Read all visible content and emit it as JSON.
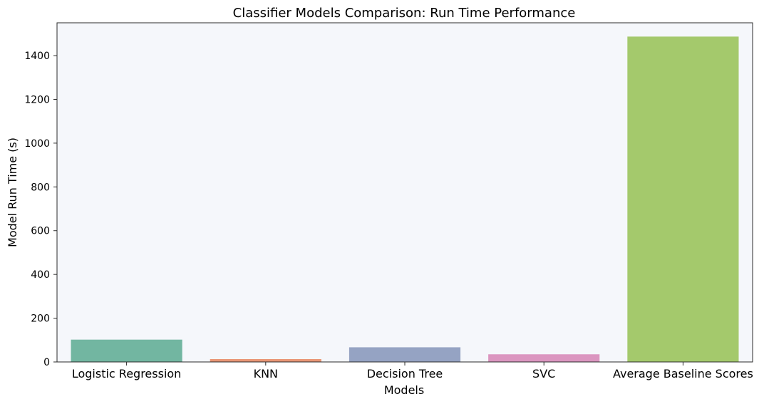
{
  "chart_data": {
    "type": "bar",
    "title": "Classifier Models Comparison: Run Time Performance",
    "xlabel": "Models",
    "ylabel": "Model Run Time (s)",
    "categories": [
      "Logistic Regression",
      "KNN",
      "Decision Tree",
      "SVC",
      "Average Baseline Scores"
    ],
    "values": [
      102,
      13,
      67,
      35,
      1487
    ],
    "colors": [
      "#72b6a1",
      "#e99675",
      "#95a3c3",
      "#db96c0",
      "#a4c96c"
    ],
    "ylim": [
      0,
      1550
    ],
    "yticks": [
      0,
      200,
      400,
      600,
      800,
      1000,
      1200,
      1400
    ],
    "grid": false,
    "background": "#f5f7fb"
  }
}
